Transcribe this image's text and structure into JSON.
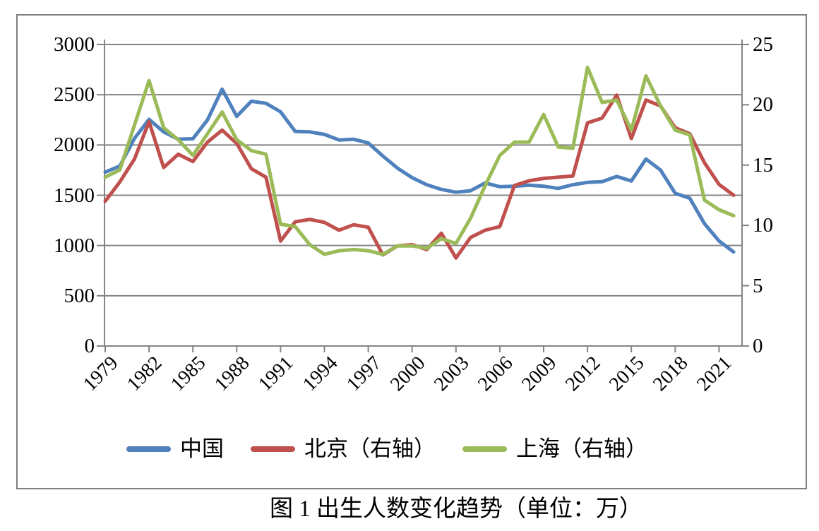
{
  "figure": {
    "caption": "图 1 出生人数变化趋势（单位：万）"
  },
  "colors": {
    "china_line": "#4F81BD",
    "beijing_line": "#C0504D",
    "shanghai_line": "#9BBB59",
    "gridline": "#848484",
    "axis": "#848484",
    "border": "#7f7f7f",
    "text": "#000000"
  },
  "chart_data": {
    "type": "line",
    "title": "",
    "xlabel": "",
    "ylabel_left": "",
    "ylabel_right": "",
    "grid": true,
    "legend_position": "bottom",
    "x": [
      1979,
      1980,
      1981,
      1982,
      1983,
      1984,
      1985,
      1986,
      1987,
      1988,
      1989,
      1990,
      1991,
      1992,
      1993,
      1994,
      1995,
      1996,
      1997,
      1998,
      1999,
      2000,
      2001,
      2002,
      2003,
      2004,
      2005,
      2006,
      2007,
      2008,
      2009,
      2010,
      2011,
      2012,
      2013,
      2014,
      2015,
      2016,
      2017,
      2018,
      2019,
      2020,
      2021,
      2022
    ],
    "x_tick_labels": [
      "1979",
      "1982",
      "1985",
      "1988",
      "1991",
      "1994",
      "1997",
      "2000",
      "2003",
      "2006",
      "2009",
      "2012",
      "2015",
      "2018",
      "2021"
    ],
    "left_axis": {
      "min": 0,
      "max": 3000,
      "step": 500,
      "tick_labels": [
        "0",
        "500",
        "1000",
        "1500",
        "2000",
        "2500",
        "3000"
      ]
    },
    "right_axis": {
      "min": 0,
      "max": 25,
      "step": 5,
      "tick_labels": [
        "0",
        "5",
        "10",
        "15",
        "20",
        "25"
      ]
    },
    "series": [
      {
        "name": "中国",
        "axis": "left",
        "color": "#4F81BD",
        "values": [
          1730,
          1790,
          2065,
          2255,
          2130,
          2057,
          2062,
          2250,
          2555,
          2285,
          2435,
          2415,
          2330,
          2135,
          2130,
          2105,
          2050,
          2057,
          2020,
          1890,
          1770,
          1675,
          1605,
          1558,
          1530,
          1545,
          1622,
          1585,
          1590,
          1600,
          1590,
          1568,
          1605,
          1628,
          1635,
          1687,
          1642,
          1860,
          1750,
          1520,
          1470,
          1218,
          1045,
          935
        ]
      },
      {
        "name": "北京（右轴）",
        "axis": "right",
        "color": "#C0504D",
        "values": [
          12.0,
          13.6,
          15.5,
          18.6,
          14.8,
          15.9,
          15.3,
          16.9,
          17.9,
          16.8,
          14.7,
          14.0,
          8.7,
          10.3,
          10.5,
          10.25,
          9.6,
          10.05,
          9.85,
          7.55,
          8.3,
          8.4,
          8.0,
          9.35,
          7.3,
          9.0,
          9.6,
          9.9,
          13.3,
          13.7,
          13.9,
          14.0,
          14.1,
          18.5,
          18.9,
          20.8,
          17.2,
          20.4,
          19.9,
          18.1,
          17.6,
          15.2,
          13.4,
          12.5
        ]
      },
      {
        "name": "上海（右轴）",
        "axis": "right",
        "color": "#9BBB59",
        "values": [
          14.0,
          14.6,
          18.3,
          22.0,
          18.1,
          17.1,
          15.8,
          17.6,
          19.4,
          17.1,
          16.2,
          15.9,
          10.1,
          9.9,
          8.4,
          7.6,
          7.9,
          8.0,
          7.9,
          7.6,
          8.3,
          8.3,
          8.1,
          8.9,
          8.5,
          10.6,
          13.3,
          15.8,
          16.9,
          16.9,
          19.2,
          16.5,
          16.4,
          23.1,
          20.2,
          20.4,
          17.9,
          22.4,
          19.9,
          17.9,
          17.5,
          12.1,
          11.3,
          10.8
        ]
      }
    ]
  }
}
